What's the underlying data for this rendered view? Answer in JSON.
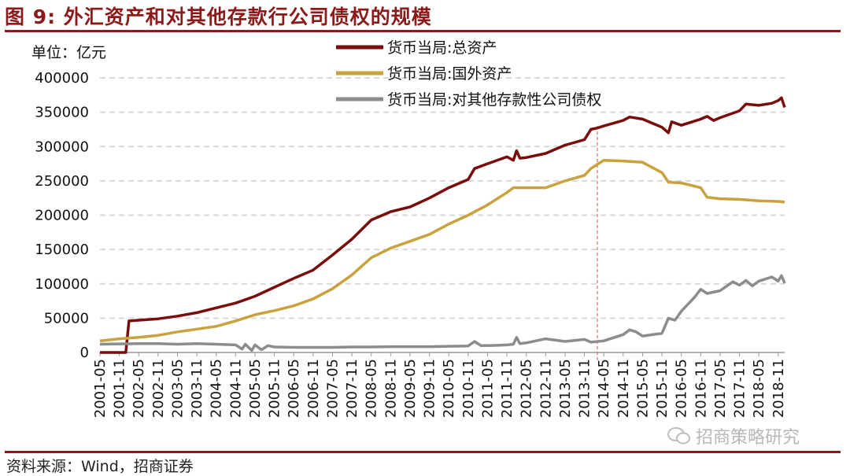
{
  "figure": {
    "title": "图 9:  外汇资产和对其他存款行公司债权的规模",
    "source": "资料来源：Wind，招商证券",
    "watermark": "招商策略研究",
    "unit_label": "单位：亿元"
  },
  "colors": {
    "brand": "#8b1a1a",
    "grid": "#d9d9d9",
    "vline": "#e06666"
  },
  "chart_data": {
    "type": "line",
    "ylabel": "",
    "xlabel": "",
    "ylim": [
      0,
      400000
    ],
    "yticks": [
      0,
      50000,
      100000,
      150000,
      200000,
      250000,
      300000,
      350000,
      400000
    ],
    "xticks": [
      "2001-05",
      "2001-11",
      "2002-05",
      "2002-11",
      "2003-05",
      "2003-11",
      "2004-05",
      "2004-11",
      "2005-05",
      "2005-11",
      "2006-05",
      "2006-11",
      "2007-05",
      "2007-11",
      "2008-05",
      "2008-11",
      "2009-05",
      "2009-11",
      "2010-05",
      "2010-11",
      "2011-05",
      "2011-11",
      "2012-05",
      "2012-11",
      "2013-05",
      "2013-11",
      "2014-05",
      "2014-11",
      "2015-05",
      "2015-11",
      "2016-05",
      "2016-11",
      "2017-05",
      "2017-11",
      "2018-05",
      "2018-11"
    ],
    "x_range": [
      "2001-05",
      "2019-01"
    ],
    "grid": "horizontal dashed",
    "legend_position": "top",
    "vertical_marker": "2014-03",
    "series": [
      {
        "name": "货币当局:总资产",
        "color": "#7b0c0c",
        "points": [
          [
            "2001-05",
            0
          ],
          [
            "2001-11",
            0
          ],
          [
            "2002-01",
            0
          ],
          [
            "2002-02",
            46000
          ],
          [
            "2002-05",
            47000
          ],
          [
            "2002-11",
            49000
          ],
          [
            "2003-05",
            53000
          ],
          [
            "2003-11",
            58000
          ],
          [
            "2004-05",
            65000
          ],
          [
            "2004-11",
            72000
          ],
          [
            "2005-05",
            82000
          ],
          [
            "2005-11",
            95000
          ],
          [
            "2006-05",
            108000
          ],
          [
            "2006-11",
            120000
          ],
          [
            "2007-05",
            142000
          ],
          [
            "2007-11",
            165000
          ],
          [
            "2008-05",
            193000
          ],
          [
            "2008-11",
            205000
          ],
          [
            "2009-05",
            212000
          ],
          [
            "2009-11",
            225000
          ],
          [
            "2010-05",
            240000
          ],
          [
            "2010-11",
            252000
          ],
          [
            "2011-01",
            268000
          ],
          [
            "2011-05",
            275000
          ],
          [
            "2011-11",
            285000
          ],
          [
            "2012-01",
            280000
          ],
          [
            "2012-02",
            294000
          ],
          [
            "2012-03",
            283000
          ],
          [
            "2012-05",
            284000
          ],
          [
            "2012-11",
            290000
          ],
          [
            "2013-05",
            302000
          ],
          [
            "2013-11",
            310000
          ],
          [
            "2014-01",
            325000
          ],
          [
            "2014-03",
            327000
          ],
          [
            "2014-05",
            330000
          ],
          [
            "2014-11",
            338000
          ],
          [
            "2015-01",
            343000
          ],
          [
            "2015-05",
            340000
          ],
          [
            "2015-11",
            328000
          ],
          [
            "2016-01",
            320000
          ],
          [
            "2016-02",
            336000
          ],
          [
            "2016-05",
            331000
          ],
          [
            "2016-11",
            340000
          ],
          [
            "2017-01",
            344000
          ],
          [
            "2017-03",
            338000
          ],
          [
            "2017-05",
            342000
          ],
          [
            "2017-11",
            352000
          ],
          [
            "2018-01",
            362000
          ],
          [
            "2018-05",
            360000
          ],
          [
            "2018-09",
            363000
          ],
          [
            "2018-11",
            367000
          ],
          [
            "2018-12",
            371000
          ],
          [
            "2019-01",
            357000
          ]
        ]
      },
      {
        "name": "货币当局:国外资产",
        "color": "#c9a13d",
        "points": [
          [
            "2001-05",
            17000
          ],
          [
            "2001-11",
            20000
          ],
          [
            "2002-05",
            22000
          ],
          [
            "2002-11",
            25000
          ],
          [
            "2003-05",
            30000
          ],
          [
            "2003-11",
            34000
          ],
          [
            "2004-05",
            38000
          ],
          [
            "2004-11",
            46000
          ],
          [
            "2005-05",
            55000
          ],
          [
            "2005-11",
            61000
          ],
          [
            "2006-05",
            68000
          ],
          [
            "2006-11",
            78000
          ],
          [
            "2007-05",
            93000
          ],
          [
            "2007-11",
            113000
          ],
          [
            "2008-05",
            138000
          ],
          [
            "2008-11",
            152000
          ],
          [
            "2009-05",
            162000
          ],
          [
            "2009-11",
            172000
          ],
          [
            "2010-05",
            187000
          ],
          [
            "2010-11",
            200000
          ],
          [
            "2011-05",
            215000
          ],
          [
            "2011-11",
            233000
          ],
          [
            "2012-01",
            240000
          ],
          [
            "2012-05",
            240000
          ],
          [
            "2012-11",
            240000
          ],
          [
            "2013-05",
            250000
          ],
          [
            "2013-11",
            258000
          ],
          [
            "2014-01",
            268000
          ],
          [
            "2014-05",
            280000
          ],
          [
            "2014-11",
            279000
          ],
          [
            "2015-05",
            277000
          ],
          [
            "2015-11",
            262000
          ],
          [
            "2016-01",
            248000
          ],
          [
            "2016-05",
            247000
          ],
          [
            "2016-11",
            240000
          ],
          [
            "2017-01",
            226000
          ],
          [
            "2017-05",
            224000
          ],
          [
            "2017-11",
            223000
          ],
          [
            "2018-05",
            221000
          ],
          [
            "2018-11",
            220000
          ],
          [
            "2019-01",
            219000
          ]
        ]
      },
      {
        "name": "货币当局:对其他存款性公司债权",
        "color": "#8c8c8c",
        "points": [
          [
            "2001-05",
            12000
          ],
          [
            "2001-11",
            12500
          ],
          [
            "2002-05",
            13000
          ],
          [
            "2002-11",
            13000
          ],
          [
            "2003-05",
            12000
          ],
          [
            "2003-11",
            13000
          ],
          [
            "2004-05",
            12000
          ],
          [
            "2004-11",
            11000
          ],
          [
            "2005-01",
            5000
          ],
          [
            "2005-02",
            12000
          ],
          [
            "2005-04",
            3000
          ],
          [
            "2005-05",
            11000
          ],
          [
            "2005-07",
            4000
          ],
          [
            "2005-09",
            10000
          ],
          [
            "2005-11",
            8000
          ],
          [
            "2006-05",
            7500
          ],
          [
            "2006-11",
            7500
          ],
          [
            "2007-05",
            7500
          ],
          [
            "2007-11",
            8000
          ],
          [
            "2008-05",
            8000
          ],
          [
            "2008-11",
            8500
          ],
          [
            "2009-05",
            8500
          ],
          [
            "2009-11",
            8500
          ],
          [
            "2010-05",
            9000
          ],
          [
            "2010-11",
            9500
          ],
          [
            "2011-01",
            16000
          ],
          [
            "2011-03",
            10000
          ],
          [
            "2011-05",
            10000
          ],
          [
            "2011-11",
            11000
          ],
          [
            "2012-01",
            12000
          ],
          [
            "2012-02",
            22000
          ],
          [
            "2012-03",
            13000
          ],
          [
            "2012-05",
            14000
          ],
          [
            "2012-11",
            20000
          ],
          [
            "2013-05",
            16000
          ],
          [
            "2013-11",
            19000
          ],
          [
            "2014-01",
            15000
          ],
          [
            "2014-05",
            17000
          ],
          [
            "2014-11",
            26000
          ],
          [
            "2015-01",
            33000
          ],
          [
            "2015-03",
            30000
          ],
          [
            "2015-05",
            24000
          ],
          [
            "2015-11",
            28000
          ],
          [
            "2016-01",
            50000
          ],
          [
            "2016-03",
            47000
          ],
          [
            "2016-05",
            60000
          ],
          [
            "2016-09",
            80000
          ],
          [
            "2016-11",
            92000
          ],
          [
            "2017-01",
            86000
          ],
          [
            "2017-05",
            90000
          ],
          [
            "2017-09",
            103000
          ],
          [
            "2017-11",
            98000
          ],
          [
            "2018-01",
            105000
          ],
          [
            "2018-03",
            97000
          ],
          [
            "2018-05",
            104000
          ],
          [
            "2018-09",
            110000
          ],
          [
            "2018-11",
            104000
          ],
          [
            "2018-12",
            112000
          ],
          [
            "2019-01",
            101000
          ]
        ]
      }
    ]
  }
}
